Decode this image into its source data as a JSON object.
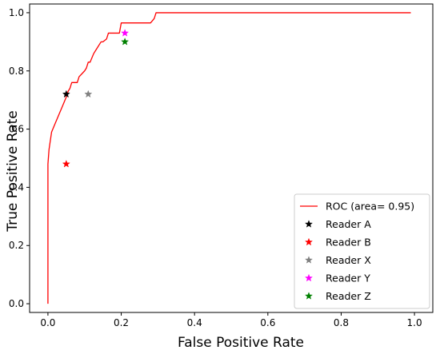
{
  "chart_data": {
    "type": "line",
    "title": "",
    "xlabel": "False Positive Rate",
    "ylabel": "True Positive Rate",
    "xlim": [
      -0.05,
      1.05
    ],
    "ylim": [
      -0.03,
      1.03
    ],
    "xticks": [
      "0.0",
      "0.2",
      "0.4",
      "0.6",
      "0.8",
      "1.0"
    ],
    "yticks": [
      "0.0",
      "0.2",
      "0.4",
      "0.6",
      "0.8",
      "1.0"
    ],
    "grid": false,
    "legend_position": "lower-right",
    "series": [
      {
        "name": "ROC (area= 0.95)",
        "kind": "line",
        "color": "#ff0000",
        "x": [
          0.0,
          0.0,
          0.003,
          0.01,
          0.02,
          0.03,
          0.04,
          0.05,
          0.055,
          0.06,
          0.065,
          0.08,
          0.085,
          0.1,
          0.105,
          0.11,
          0.115,
          0.125,
          0.13,
          0.145,
          0.15,
          0.16,
          0.165,
          0.195,
          0.2,
          0.27,
          0.28,
          0.29,
          0.295,
          0.3,
          0.5,
          0.7,
          0.99
        ],
        "y": [
          0.0,
          0.48,
          0.53,
          0.59,
          0.62,
          0.65,
          0.68,
          0.71,
          0.73,
          0.74,
          0.76,
          0.76,
          0.78,
          0.8,
          0.81,
          0.83,
          0.83,
          0.86,
          0.87,
          0.9,
          0.9,
          0.91,
          0.93,
          0.93,
          0.965,
          0.965,
          0.965,
          0.98,
          1.0,
          1.0,
          1.0,
          1.0,
          1.0
        ]
      },
      {
        "name": "Reader A",
        "kind": "marker",
        "color": "#000000",
        "x": [
          0.05
        ],
        "y": [
          0.72
        ]
      },
      {
        "name": "Reader B",
        "kind": "marker",
        "color": "#ff0000",
        "x": [
          0.05
        ],
        "y": [
          0.48
        ]
      },
      {
        "name": "Reader X",
        "kind": "marker",
        "color": "#808080",
        "x": [
          0.11
        ],
        "y": [
          0.72
        ]
      },
      {
        "name": "Reader Y",
        "kind": "marker",
        "color": "#ff00ff",
        "x": [
          0.21
        ],
        "y": [
          0.93
        ]
      },
      {
        "name": "Reader Z",
        "kind": "marker",
        "color": "#008000",
        "x": [
          0.21
        ],
        "y": [
          0.9
        ]
      }
    ]
  }
}
